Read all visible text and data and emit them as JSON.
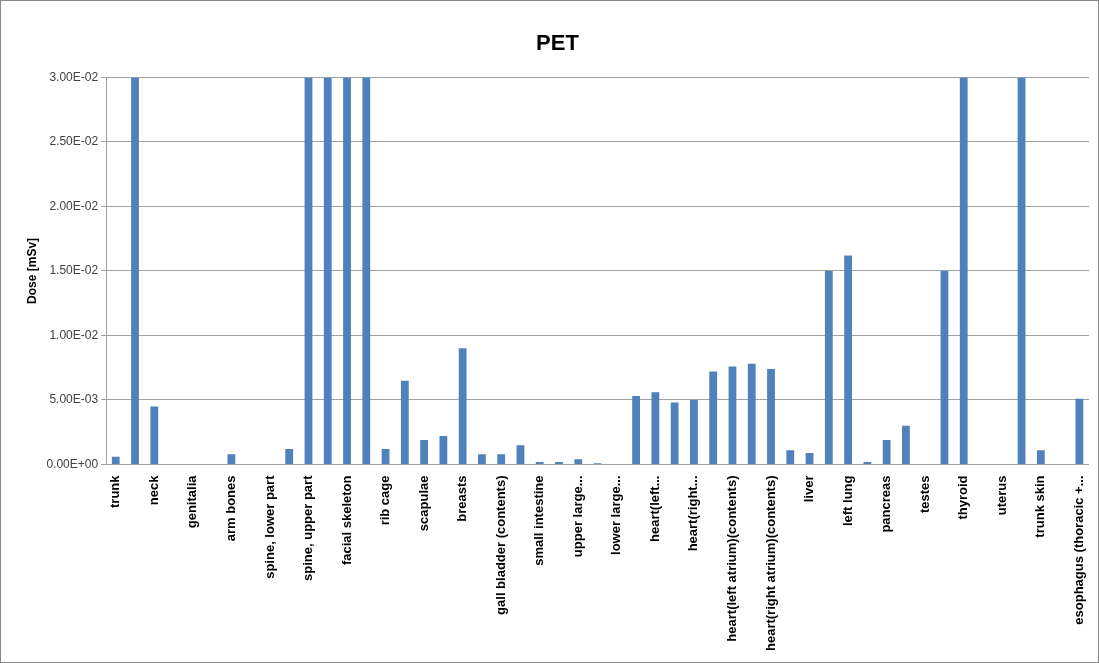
{
  "chart_data": {
    "type": "bar",
    "title": "PET",
    "ylabel": "Dose [mSv]",
    "categories": [
      "trunk",
      null,
      "neck",
      null,
      "genitalia",
      null,
      "arm bones",
      null,
      "spine, lower part",
      null,
      "spine, upper part",
      null,
      "facial skeleton",
      null,
      "rib cage",
      null,
      "scapulae",
      null,
      "breasts",
      null,
      "gall bladder (contents)",
      null,
      "small intestine",
      null,
      "upper large...",
      null,
      "lower large...",
      null,
      "heart(left...",
      null,
      "heart(right...",
      null,
      "heart(left atrium)(contents)",
      null,
      "heart(right atrium)(contents)",
      null,
      "liver",
      null,
      "left lung",
      null,
      "pancreas",
      null,
      "testes",
      null,
      "thyroid",
      null,
      "uterus",
      null,
      "trunk skin",
      null,
      "esophagus (thoracic +..."
    ],
    "values": [
      0.0006,
      0.03,
      0.0045,
      0,
      0,
      0,
      0.0008,
      0,
      0,
      0.0012,
      0.03,
      0.03,
      0.03,
      0.03,
      0.0012,
      0.0065,
      0.0019,
      0.0022,
      0.009,
      0.0008,
      0.0008,
      0.0015,
      0.0002,
      0.0002,
      0.0004,
      0.0001,
      0,
      0.0053,
      0.0056,
      0.0048,
      0.005,
      0.0072,
      0.0076,
      0.0078,
      0.0074,
      0.0011,
      0.0009,
      0.015,
      0.0162,
      0.0002,
      0.0019,
      0.003,
      0,
      0.015,
      0.03,
      0,
      0,
      0.03,
      0.0011,
      0,
      0.0051
    ],
    "color": "#4f81bd",
    "ylim": [
      0,
      0.03
    ],
    "yticks": [
      {
        "value": 0,
        "label": "0.00E+00"
      },
      {
        "value": 0.005,
        "label": "5.00E-03"
      },
      {
        "value": 0.01,
        "label": "1.00E-02"
      },
      {
        "value": 0.015,
        "label": "1.50E-02"
      },
      {
        "value": 0.02,
        "label": "2.00E-02"
      },
      {
        "value": 0.025,
        "label": "2.50E-02"
      },
      {
        "value": 0.03,
        "label": "3.00E-02"
      }
    ],
    "grid": "y"
  }
}
